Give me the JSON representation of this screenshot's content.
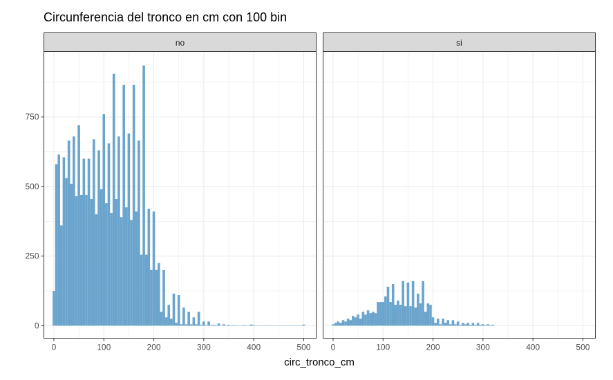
{
  "chart_data": {
    "type": "bar",
    "title": "Circunferencia del tronco en cm con 100 bin",
    "xlabel": "circ_tronco_cm",
    "ylabel": "",
    "xlim": [
      -20,
      525
    ],
    "ylim": [
      -45,
      985
    ],
    "x_ticks": [
      0,
      100,
      200,
      300,
      400,
      500
    ],
    "x_tick_labels": [
      "0",
      "100",
      "200",
      "300",
      "400",
      "500"
    ],
    "y_ticks": [
      0,
      250,
      500,
      750
    ],
    "y_tick_labels": [
      "0",
      "250",
      "500",
      "750"
    ],
    "grid": true,
    "bar_color": "#6BA4CC",
    "panel_border_color": "#333333",
    "strip_fill": "#D9D9D9",
    "grid_color": "#EBEBEB",
    "bin_width": 5,
    "panels": [
      {
        "label": "no",
        "bins": [
          {
            "x": 0,
            "y": 125
          },
          {
            "x": 5,
            "y": 580
          },
          {
            "x": 10,
            "y": 615
          },
          {
            "x": 15,
            "y": 360
          },
          {
            "x": 20,
            "y": 605
          },
          {
            "x": 25,
            "y": 530
          },
          {
            "x": 30,
            "y": 665
          },
          {
            "x": 35,
            "y": 510
          },
          {
            "x": 40,
            "y": 680
          },
          {
            "x": 45,
            "y": 465
          },
          {
            "x": 50,
            "y": 720
          },
          {
            "x": 55,
            "y": 470
          },
          {
            "x": 60,
            "y": 600
          },
          {
            "x": 65,
            "y": 470
          },
          {
            "x": 70,
            "y": 600
          },
          {
            "x": 75,
            "y": 455
          },
          {
            "x": 80,
            "y": 670
          },
          {
            "x": 85,
            "y": 400
          },
          {
            "x": 90,
            "y": 630
          },
          {
            "x": 95,
            "y": 490
          },
          {
            "x": 100,
            "y": 760
          },
          {
            "x": 105,
            "y": 440
          },
          {
            "x": 110,
            "y": 655
          },
          {
            "x": 115,
            "y": 405
          },
          {
            "x": 120,
            "y": 905
          },
          {
            "x": 125,
            "y": 455
          },
          {
            "x": 130,
            "y": 680
          },
          {
            "x": 135,
            "y": 390
          },
          {
            "x": 140,
            "y": 865
          },
          {
            "x": 145,
            "y": 425
          },
          {
            "x": 150,
            "y": 690
          },
          {
            "x": 155,
            "y": 380
          },
          {
            "x": 160,
            "y": 865
          },
          {
            "x": 165,
            "y": 410
          },
          {
            "x": 170,
            "y": 665
          },
          {
            "x": 175,
            "y": 255
          },
          {
            "x": 180,
            "y": 935
          },
          {
            "x": 185,
            "y": 255
          },
          {
            "x": 190,
            "y": 420
          },
          {
            "x": 195,
            "y": 200
          },
          {
            "x": 200,
            "y": 410
          },
          {
            "x": 205,
            "y": 200
          },
          {
            "x": 210,
            "y": 225
          },
          {
            "x": 215,
            "y": 50
          },
          {
            "x": 220,
            "y": 200
          },
          {
            "x": 225,
            "y": 30
          },
          {
            "x": 230,
            "y": 75
          },
          {
            "x": 235,
            "y": 25
          },
          {
            "x": 240,
            "y": 115
          },
          {
            "x": 245,
            "y": 10
          },
          {
            "x": 250,
            "y": 110
          },
          {
            "x": 255,
            "y": 5
          },
          {
            "x": 260,
            "y": 65
          },
          {
            "x": 265,
            "y": 5
          },
          {
            "x": 270,
            "y": 50
          },
          {
            "x": 275,
            "y": 5
          },
          {
            "x": 280,
            "y": 30
          },
          {
            "x": 285,
            "y": 5
          },
          {
            "x": 290,
            "y": 50
          },
          {
            "x": 295,
            "y": 3
          },
          {
            "x": 300,
            "y": 15
          },
          {
            "x": 305,
            "y": 2
          },
          {
            "x": 310,
            "y": 15
          },
          {
            "x": 315,
            "y": 2
          },
          {
            "x": 320,
            "y": 3
          },
          {
            "x": 325,
            "y": 2
          },
          {
            "x": 330,
            "y": 8
          },
          {
            "x": 335,
            "y": 1
          },
          {
            "x": 340,
            "y": 5
          },
          {
            "x": 345,
            "y": 1
          },
          {
            "x": 350,
            "y": 3
          },
          {
            "x": 355,
            "y": 1
          },
          {
            "x": 360,
            "y": 2
          },
          {
            "x": 365,
            "y": 1
          },
          {
            "x": 370,
            "y": 1
          },
          {
            "x": 375,
            "y": 1
          },
          {
            "x": 380,
            "y": 2
          },
          {
            "x": 385,
            "y": 1
          },
          {
            "x": 390,
            "y": 1
          },
          {
            "x": 395,
            "y": 4
          },
          {
            "x": 400,
            "y": 2
          },
          {
            "x": 405,
            "y": 1
          },
          {
            "x": 410,
            "y": 1
          },
          {
            "x": 415,
            "y": 1
          },
          {
            "x": 420,
            "y": 1
          },
          {
            "x": 425,
            "y": 1
          },
          {
            "x": 430,
            "y": 1
          },
          {
            "x": 435,
            "y": 1
          },
          {
            "x": 440,
            "y": 1
          },
          {
            "x": 445,
            "y": 1
          },
          {
            "x": 450,
            "y": 1
          },
          {
            "x": 455,
            "y": 1
          },
          {
            "x": 460,
            "y": 1
          },
          {
            "x": 465,
            "y": 1
          },
          {
            "x": 470,
            "y": 1
          },
          {
            "x": 475,
            "y": 1
          },
          {
            "x": 480,
            "y": 1
          },
          {
            "x": 485,
            "y": 1
          },
          {
            "x": 490,
            "y": 1
          },
          {
            "x": 495,
            "y": 1
          },
          {
            "x": 500,
            "y": 4
          }
        ]
      },
      {
        "label": "si",
        "bins": [
          {
            "x": 0,
            "y": 5
          },
          {
            "x": 5,
            "y": 10
          },
          {
            "x": 10,
            "y": 15
          },
          {
            "x": 15,
            "y": 10
          },
          {
            "x": 20,
            "y": 20
          },
          {
            "x": 25,
            "y": 15
          },
          {
            "x": 30,
            "y": 25
          },
          {
            "x": 35,
            "y": 20
          },
          {
            "x": 40,
            "y": 35
          },
          {
            "x": 45,
            "y": 30
          },
          {
            "x": 50,
            "y": 40
          },
          {
            "x": 55,
            "y": 25
          },
          {
            "x": 60,
            "y": 50
          },
          {
            "x": 65,
            "y": 40
          },
          {
            "x": 70,
            "y": 55
          },
          {
            "x": 75,
            "y": 45
          },
          {
            "x": 80,
            "y": 50
          },
          {
            "x": 85,
            "y": 45
          },
          {
            "x": 90,
            "y": 85
          },
          {
            "x": 95,
            "y": 85
          },
          {
            "x": 100,
            "y": 85
          },
          {
            "x": 105,
            "y": 105
          },
          {
            "x": 110,
            "y": 140
          },
          {
            "x": 115,
            "y": 85
          },
          {
            "x": 120,
            "y": 150
          },
          {
            "x": 125,
            "y": 75
          },
          {
            "x": 130,
            "y": 90
          },
          {
            "x": 135,
            "y": 75
          },
          {
            "x": 140,
            "y": 160
          },
          {
            "x": 145,
            "y": 70
          },
          {
            "x": 150,
            "y": 155
          },
          {
            "x": 155,
            "y": 70
          },
          {
            "x": 160,
            "y": 160
          },
          {
            "x": 165,
            "y": 65
          },
          {
            "x": 170,
            "y": 115
          },
          {
            "x": 175,
            "y": 80
          },
          {
            "x": 180,
            "y": 160
          },
          {
            "x": 185,
            "y": 50
          },
          {
            "x": 190,
            "y": 80
          },
          {
            "x": 195,
            "y": 75
          },
          {
            "x": 200,
            "y": 30
          },
          {
            "x": 205,
            "y": 10
          },
          {
            "x": 210,
            "y": 25
          },
          {
            "x": 215,
            "y": 5
          },
          {
            "x": 220,
            "y": 25
          },
          {
            "x": 225,
            "y": 10
          },
          {
            "x": 230,
            "y": 20
          },
          {
            "x": 235,
            "y": 5
          },
          {
            "x": 240,
            "y": 20
          },
          {
            "x": 245,
            "y": 5
          },
          {
            "x": 250,
            "y": 15
          },
          {
            "x": 255,
            "y": 3
          },
          {
            "x": 260,
            "y": 10
          },
          {
            "x": 265,
            "y": 5
          },
          {
            "x": 270,
            "y": 10
          },
          {
            "x": 275,
            "y": 3
          },
          {
            "x": 280,
            "y": 10
          },
          {
            "x": 285,
            "y": 3
          },
          {
            "x": 290,
            "y": 10
          },
          {
            "x": 295,
            "y": 3
          },
          {
            "x": 300,
            "y": 5
          },
          {
            "x": 305,
            "y": 2
          },
          {
            "x": 310,
            "y": 5
          },
          {
            "x": 315,
            "y": 2
          },
          {
            "x": 320,
            "y": 3
          }
        ]
      }
    ]
  }
}
